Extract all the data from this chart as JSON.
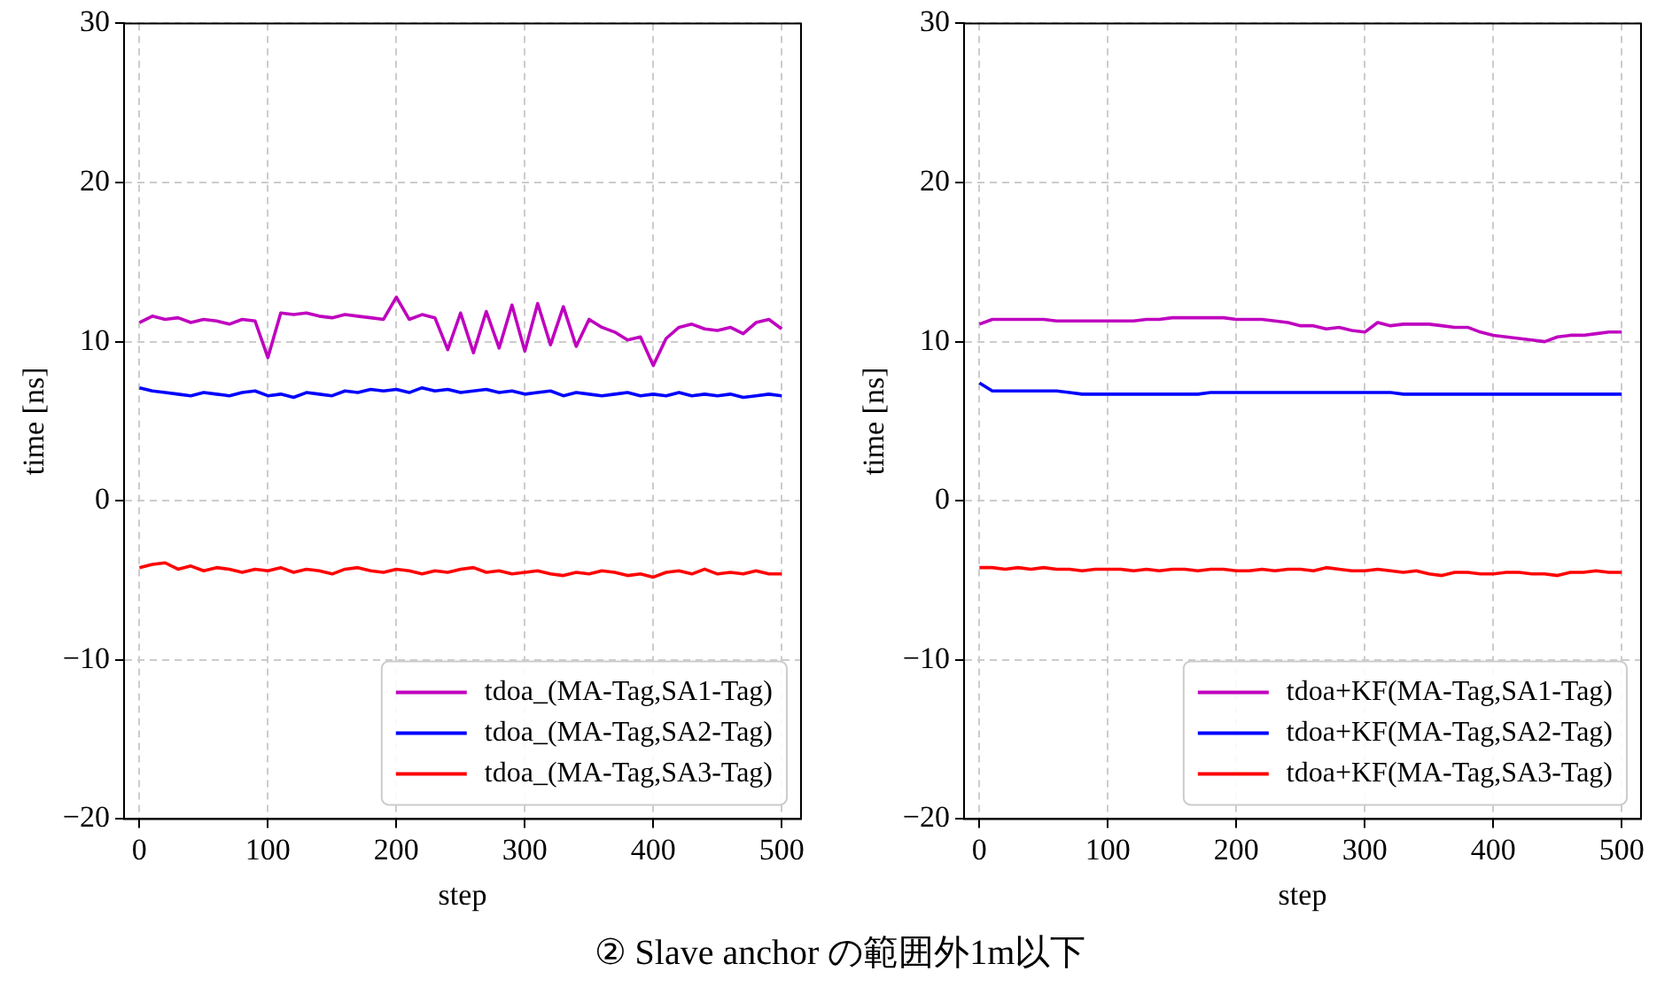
{
  "chart_data": [
    {
      "type": "line",
      "xlabel": "step",
      "ylabel": "time [ns]",
      "xlim": [
        -12,
        515
      ],
      "ylim": [
        -20,
        30
      ],
      "xticks": [
        0,
        100,
        200,
        300,
        400,
        500
      ],
      "yticks": [
        -20,
        -10,
        0,
        10,
        20,
        30
      ],
      "grid": true,
      "legend": "bottom right",
      "marker": "none",
      "line_style": "solid",
      "annotations": [
        "② Slave anchor の範囲外1m以下"
      ],
      "x": [
        0,
        10,
        20,
        30,
        40,
        50,
        60,
        70,
        80,
        90,
        100,
        110,
        120,
        130,
        140,
        150,
        160,
        170,
        180,
        190,
        200,
        210,
        220,
        230,
        240,
        250,
        260,
        270,
        280,
        290,
        300,
        310,
        320,
        330,
        340,
        350,
        360,
        370,
        380,
        390,
        400,
        410,
        420,
        430,
        440,
        450,
        460,
        470,
        480,
        490,
        500
      ],
      "series": [
        {
          "name": "tdoa_(MA-Tag,SA1-Tag)",
          "color": "#bf00bf",
          "values": [
            11.2,
            11.6,
            11.4,
            11.5,
            11.2,
            11.4,
            11.3,
            11.1,
            11.4,
            11.3,
            9.0,
            11.8,
            11.7,
            11.8,
            11.6,
            11.5,
            11.7,
            11.6,
            11.5,
            11.4,
            12.8,
            11.4,
            11.7,
            11.5,
            9.5,
            11.8,
            9.3,
            11.9,
            9.6,
            12.3,
            9.4,
            12.4,
            9.8,
            12.2,
            9.7,
            11.4,
            10.9,
            10.6,
            10.1,
            10.3,
            8.5,
            10.2,
            10.9,
            11.1,
            10.8,
            10.7,
            10.9,
            10.5,
            11.2,
            11.4,
            10.8
          ]
        },
        {
          "name": "tdoa_(MA-Tag,SA2-Tag)",
          "color": "#0000ff",
          "values": [
            7.1,
            6.9,
            6.8,
            6.7,
            6.6,
            6.8,
            6.7,
            6.6,
            6.8,
            6.9,
            6.6,
            6.7,
            6.5,
            6.8,
            6.7,
            6.6,
            6.9,
            6.8,
            7.0,
            6.9,
            7.0,
            6.8,
            7.1,
            6.9,
            7.0,
            6.8,
            6.9,
            7.0,
            6.8,
            6.9,
            6.7,
            6.8,
            6.9,
            6.6,
            6.8,
            6.7,
            6.6,
            6.7,
            6.8,
            6.6,
            6.7,
            6.6,
            6.8,
            6.6,
            6.7,
            6.6,
            6.7,
            6.5,
            6.6,
            6.7,
            6.6
          ]
        },
        {
          "name": "tdoa_(MA-Tag,SA3-Tag)",
          "color": "#ff0000",
          "values": [
            -4.2,
            -4.0,
            -3.9,
            -4.3,
            -4.1,
            -4.4,
            -4.2,
            -4.3,
            -4.5,
            -4.3,
            -4.4,
            -4.2,
            -4.5,
            -4.3,
            -4.4,
            -4.6,
            -4.3,
            -4.2,
            -4.4,
            -4.5,
            -4.3,
            -4.4,
            -4.6,
            -4.4,
            -4.5,
            -4.3,
            -4.2,
            -4.5,
            -4.4,
            -4.6,
            -4.5,
            -4.4,
            -4.6,
            -4.7,
            -4.5,
            -4.6,
            -4.4,
            -4.5,
            -4.7,
            -4.6,
            -4.8,
            -4.5,
            -4.4,
            -4.6,
            -4.3,
            -4.6,
            -4.5,
            -4.6,
            -4.4,
            -4.6,
            -4.6
          ]
        }
      ]
    },
    {
      "type": "line",
      "xlabel": "step",
      "ylabel": "time [ns]",
      "xlim": [
        -12,
        515
      ],
      "ylim": [
        -20,
        30
      ],
      "xticks": [
        0,
        100,
        200,
        300,
        400,
        500
      ],
      "yticks": [
        -20,
        -10,
        0,
        10,
        20,
        30
      ],
      "grid": true,
      "legend": "bottom right",
      "marker": "none",
      "line_style": "solid",
      "x": [
        0,
        10,
        20,
        30,
        40,
        50,
        60,
        70,
        80,
        90,
        100,
        110,
        120,
        130,
        140,
        150,
        160,
        170,
        180,
        190,
        200,
        210,
        220,
        230,
        240,
        250,
        260,
        270,
        280,
        290,
        300,
        310,
        320,
        330,
        340,
        350,
        360,
        370,
        380,
        390,
        400,
        410,
        420,
        430,
        440,
        450,
        460,
        470,
        480,
        490,
        500
      ],
      "series": [
        {
          "name": "tdoa+KF(MA-Tag,SA1-Tag)",
          "color": "#bf00bf",
          "values": [
            11.1,
            11.4,
            11.4,
            11.4,
            11.4,
            11.4,
            11.3,
            11.3,
            11.3,
            11.3,
            11.3,
            11.3,
            11.3,
            11.4,
            11.4,
            11.5,
            11.5,
            11.5,
            11.5,
            11.5,
            11.4,
            11.4,
            11.4,
            11.3,
            11.2,
            11.0,
            11.0,
            10.8,
            10.9,
            10.7,
            10.6,
            11.2,
            11.0,
            11.1,
            11.1,
            11.1,
            11.0,
            10.9,
            10.9,
            10.6,
            10.4,
            10.3,
            10.2,
            10.1,
            10.0,
            10.3,
            10.4,
            10.4,
            10.5,
            10.6,
            10.6
          ]
        },
        {
          "name": "tdoa+KF(MA-Tag,SA2-Tag)",
          "color": "#0000ff",
          "values": [
            7.4,
            6.9,
            6.9,
            6.9,
            6.9,
            6.9,
            6.9,
            6.8,
            6.7,
            6.7,
            6.7,
            6.7,
            6.7,
            6.7,
            6.7,
            6.7,
            6.7,
            6.7,
            6.8,
            6.8,
            6.8,
            6.8,
            6.8,
            6.8,
            6.8,
            6.8,
            6.8,
            6.8,
            6.8,
            6.8,
            6.8,
            6.8,
            6.8,
            6.7,
            6.7,
            6.7,
            6.7,
            6.7,
            6.7,
            6.7,
            6.7,
            6.7,
            6.7,
            6.7,
            6.7,
            6.7,
            6.7,
            6.7,
            6.7,
            6.7,
            6.7
          ]
        },
        {
          "name": "tdoa+KF(MA-Tag,SA3-Tag)",
          "color": "#ff0000",
          "values": [
            -4.2,
            -4.2,
            -4.3,
            -4.2,
            -4.3,
            -4.2,
            -4.3,
            -4.3,
            -4.4,
            -4.3,
            -4.3,
            -4.3,
            -4.4,
            -4.3,
            -4.4,
            -4.3,
            -4.3,
            -4.4,
            -4.3,
            -4.3,
            -4.4,
            -4.4,
            -4.3,
            -4.4,
            -4.3,
            -4.3,
            -4.4,
            -4.2,
            -4.3,
            -4.4,
            -4.4,
            -4.3,
            -4.4,
            -4.5,
            -4.4,
            -4.6,
            -4.7,
            -4.5,
            -4.5,
            -4.6,
            -4.6,
            -4.5,
            -4.5,
            -4.6,
            -4.6,
            -4.7,
            -4.5,
            -4.5,
            -4.4,
            -4.5,
            -4.5
          ]
        }
      ]
    }
  ]
}
